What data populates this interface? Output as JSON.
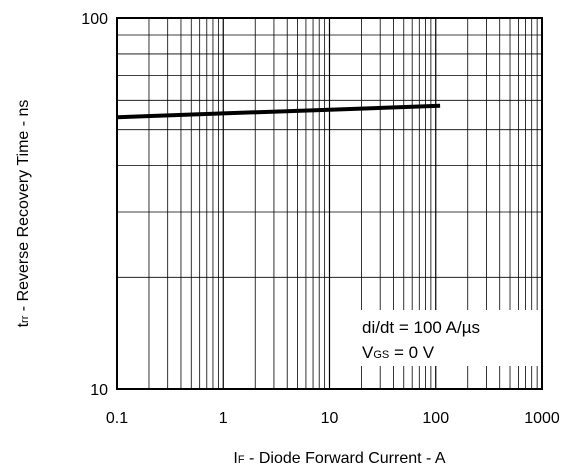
{
  "chart_data": {
    "type": "line",
    "x_scale": "log",
    "y_scale": "log",
    "xlim": [
      0.1,
      1000
    ],
    "ylim": [
      10,
      100
    ],
    "grid": true,
    "x_ticks": [
      "0.1",
      "1",
      "10",
      "100",
      "1000"
    ],
    "y_ticks": [
      "10",
      "100"
    ],
    "xlabel": {
      "main": "I",
      "sub": "F",
      "rest": " - Diode Forward Current - A"
    },
    "ylabel": {
      "main": "t",
      "sub": "rr",
      "rest": " - Reverse Recovery Time - ns"
    },
    "annotations": {
      "line1": "di/dt = 100 A/µs",
      "line2_main": "V",
      "line2_sub": "GS",
      "line2_rest": " = 0 V"
    },
    "series": [
      {
        "x": [
          0.1,
          1,
          10,
          110
        ],
        "y": [
          54,
          55.3,
          56.6,
          58
        ]
      }
    ]
  }
}
